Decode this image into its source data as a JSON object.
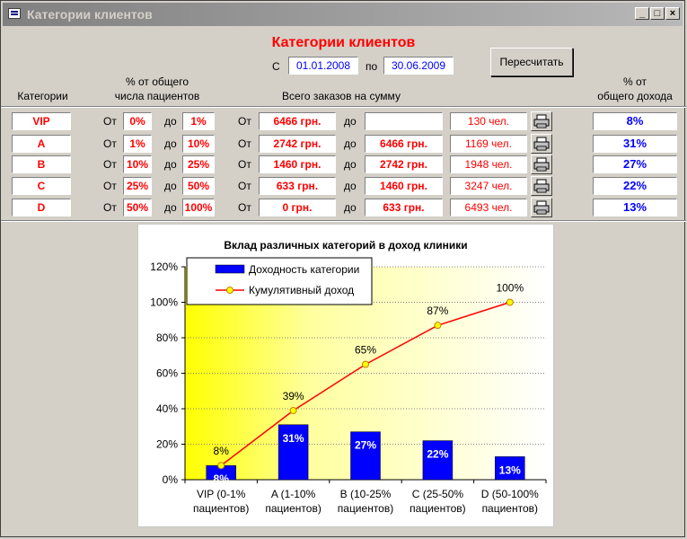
{
  "window": {
    "title": "Категории клиентов"
  },
  "form": {
    "title": "Категории клиентов",
    "from_label": "С",
    "from_date": "01.01.2008",
    "to_label": "по",
    "to_date": "30.06.2009",
    "recalc_label": "Пересчитать"
  },
  "columns": {
    "category": "Категории",
    "pct_patients_1": "% от общего",
    "pct_patients_2": "числа пациентов",
    "orders": "Всего заказов на сумму",
    "pct_income_1": "% от",
    "pct_income_2": "общего дохода"
  },
  "labels": {
    "from": "От",
    "to": "до"
  },
  "rows": [
    {
      "cat": "VIP",
      "p_from": "0%",
      "p_to": "1%",
      "s_from": "6466 грн.",
      "s_to": "",
      "count": "130 чел.",
      "income": "8%"
    },
    {
      "cat": "A",
      "p_from": "1%",
      "p_to": "10%",
      "s_from": "2742 грн.",
      "s_to": "6466 грн.",
      "count": "1169 чел.",
      "income": "31%"
    },
    {
      "cat": "B",
      "p_from": "10%",
      "p_to": "25%",
      "s_from": "1460 грн.",
      "s_to": "2742 грн.",
      "count": "1948 чел.",
      "income": "27%"
    },
    {
      "cat": "C",
      "p_from": "25%",
      "p_to": "50%",
      "s_from": "633 грн.",
      "s_to": "1460 грн.",
      "count": "3247 чел.",
      "income": "22%"
    },
    {
      "cat": "D",
      "p_from": "50%",
      "p_to": "100%",
      "s_from": "0 грн.",
      "s_to": "633 грн.",
      "count": "6493 чел.",
      "income": "13%"
    }
  ],
  "chart_data": {
    "type": "bar",
    "title": "Вклад различных категорий в доход клиники",
    "categories": [
      [
        "VIP (0-1%",
        "пациентов)"
      ],
      [
        "A (1-10%",
        "пациентов)"
      ],
      [
        "B (10-25%",
        "пациентов)"
      ],
      [
        "C (25-50%",
        "пациентов)"
      ],
      [
        "D (50-100%",
        "пациентов)"
      ]
    ],
    "series": [
      {
        "name": "Доходность категории",
        "type": "bar",
        "color": "#0000ff",
        "values": [
          8,
          31,
          27,
          22,
          13
        ],
        "labels": [
          "8%",
          "31%",
          "27%",
          "22%",
          "13%"
        ]
      },
      {
        "name": "Кумулятивный доход",
        "type": "line",
        "color": "#ff0000",
        "marker_color": "#ffff00",
        "values": [
          8,
          39,
          65,
          87,
          100
        ],
        "labels": [
          "8%",
          "39%",
          "65%",
          "87%",
          "100%"
        ]
      }
    ],
    "yticks": [
      "0%",
      "20%",
      "40%",
      "60%",
      "80%",
      "100%",
      "120%"
    ],
    "ylim": [
      0,
      120
    ],
    "legend": "top-left",
    "grid": true
  }
}
